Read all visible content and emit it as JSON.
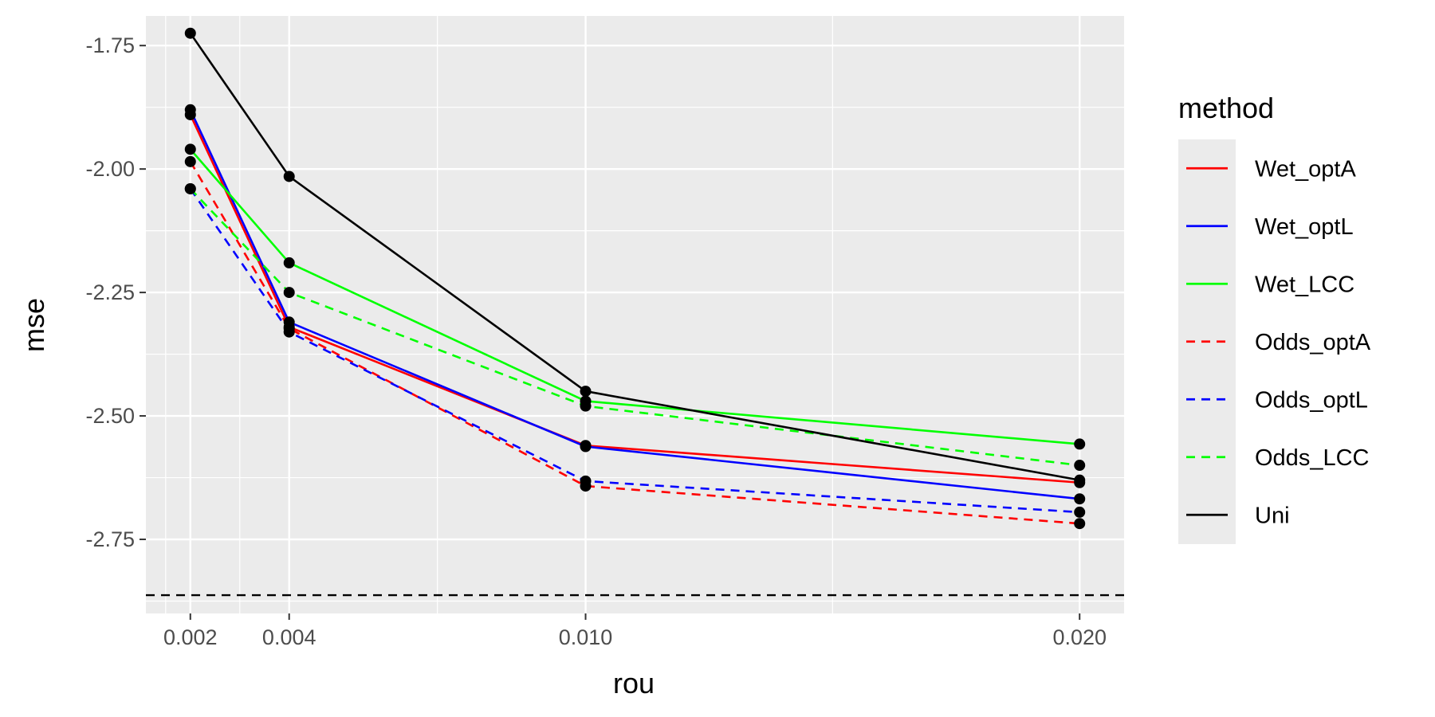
{
  "chart_data": {
    "type": "line",
    "xlabel": "rou",
    "ylabel": "mse",
    "x": [
      0.002,
      0.004,
      0.01,
      0.02
    ],
    "x_tick_labels": [
      "0.002",
      "0.004",
      "0.010",
      "0.020"
    ],
    "x_ticks": [
      0.002,
      0.004,
      0.01,
      0.02
    ],
    "xlim": [
      0.0011,
      0.0209
    ],
    "y_ticks": [
      -1.75,
      -2.0,
      -2.25,
      -2.5,
      -2.75
    ],
    "y_tick_labels": [
      "-1.75",
      "-2.00",
      "-2.25",
      "-2.50",
      "-2.75"
    ],
    "ylim": [
      -2.9,
      -1.69
    ],
    "grid": true,
    "background": "#ebebeb",
    "legend": {
      "title": "method",
      "placement": "right"
    },
    "reference_line": {
      "y": -2.863,
      "style": "dashed",
      "color": "#000000"
    },
    "series": [
      {
        "name": "Wet_optA",
        "color": "#ff0000",
        "dash": "solid",
        "values": [
          -1.89,
          -2.32,
          -2.56,
          -2.635
        ]
      },
      {
        "name": "Wet_optL",
        "color": "#0000ff",
        "dash": "solid",
        "values": [
          -1.88,
          -2.31,
          -2.562,
          -2.668
        ]
      },
      {
        "name": "Wet_LCC",
        "color": "#00ff00",
        "dash": "solid",
        "values": [
          -1.96,
          -2.19,
          -2.47,
          -2.557
        ]
      },
      {
        "name": "Odds_optA",
        "color": "#ff0000",
        "dash": "dashed",
        "values": [
          -1.985,
          -2.323,
          -2.642,
          -2.718
        ]
      },
      {
        "name": "Odds_optL",
        "color": "#0000ff",
        "dash": "dashed",
        "values": [
          -2.04,
          -2.33,
          -2.632,
          -2.695
        ]
      },
      {
        "name": "Odds_LCC",
        "color": "#00ff00",
        "dash": "dashed",
        "values": [
          -2.04,
          -2.25,
          -2.48,
          -2.6
        ]
      },
      {
        "name": "Uni",
        "color": "#000000",
        "dash": "solid",
        "values": [
          -1.725,
          -2.015,
          -2.45,
          -2.63
        ]
      }
    ]
  }
}
